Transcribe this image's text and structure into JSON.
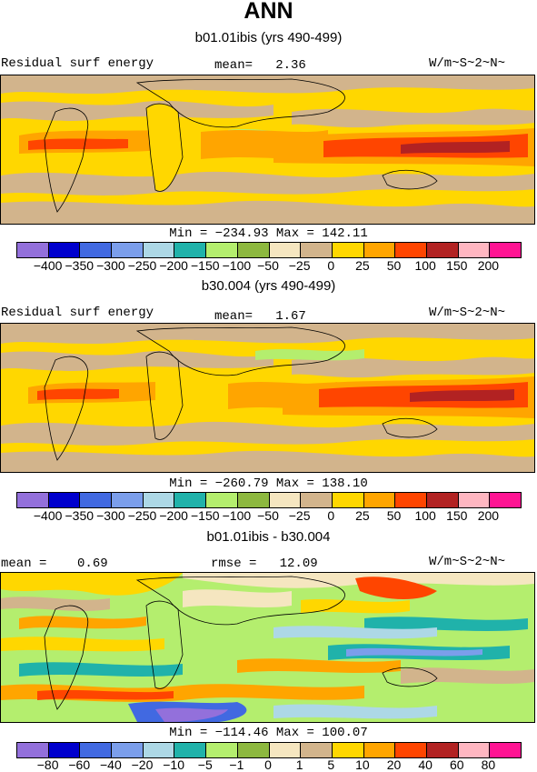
{
  "title": "ANN",
  "panels": [
    {
      "subtitle": "b01.01ibis (yrs 490-499)",
      "left_label": "Residual surf energy",
      "center_label": "mean=   2.36",
      "units": "W/m~S~2~N~",
      "minmax": "Min = −234.93 Max = 142.11",
      "tick_labels": [
        "−400",
        "−350",
        "−300",
        "−250",
        "−200",
        "−150",
        "−100",
        "−50",
        "−25",
        "0",
        "25",
        "50",
        "100",
        "150",
        "200"
      ]
    },
    {
      "subtitle": "b30.004 (yrs 490-499)",
      "left_label": "Residual surf energy",
      "center_label": "mean=   1.67",
      "units": "W/m~S~2~N~",
      "minmax": "Min = −260.79 Max = 138.10",
      "tick_labels": [
        "−400",
        "−350",
        "−300",
        "−250",
        "−200",
        "−150",
        "−100",
        "−50",
        "−25",
        "0",
        "25",
        "50",
        "100",
        "150",
        "200"
      ]
    },
    {
      "subtitle": "b01.01ibis - b30.004",
      "left_label": "mean =    0.69",
      "center_label": "rmse =   12.09",
      "units": "W/m~S~2~N~",
      "minmax": "Min = −114.46 Max = 100.07",
      "tick_labels": [
        "−80",
        "−60",
        "−40",
        "−20",
        "−10",
        "−5",
        "−1",
        "0",
        "1",
        "5",
        "10",
        "20",
        "40",
        "60",
        "80"
      ]
    }
  ],
  "colorbar_colors": [
    "#9370DB",
    "#0000CD",
    "#4169E1",
    "#7B9EEB",
    "#ADD8E6",
    "#20B2AA",
    "#B4EE6E",
    "#8DB83F",
    "#F5E6C0",
    "#D2B48C",
    "#FFD700",
    "#FFA500",
    "#FF4500",
    "#B22222",
    "#FFB6C1",
    "#FF1493"
  ],
  "chart_data": [
    {
      "type": "heatmap",
      "title": "b01.01ibis (yrs 490-499)",
      "field": "Residual surf energy",
      "units": "W/m~S~2~N~",
      "mean": 2.36,
      "min": -234.93,
      "max": 142.11,
      "levels": [
        -400,
        -350,
        -300,
        -250,
        -200,
        -150,
        -100,
        -50,
        -25,
        0,
        25,
        50,
        100,
        150,
        200
      ]
    },
    {
      "type": "heatmap",
      "title": "b30.004 (yrs 490-499)",
      "field": "Residual surf energy",
      "units": "W/m~S~2~N~",
      "mean": 1.67,
      "min": -260.79,
      "max": 138.1,
      "levels": [
        -400,
        -350,
        -300,
        -250,
        -200,
        -150,
        -100,
        -50,
        -25,
        0,
        25,
        50,
        100,
        150,
        200
      ]
    },
    {
      "type": "heatmap",
      "title": "b01.01ibis - b30.004",
      "units": "W/m~S~2~N~",
      "mean": 0.69,
      "rmse": 12.09,
      "min": -114.46,
      "max": 100.07,
      "levels": [
        -80,
        -60,
        -40,
        -20,
        -10,
        -5,
        -1,
        0,
        1,
        5,
        10,
        20,
        40,
        60,
        80
      ]
    }
  ]
}
